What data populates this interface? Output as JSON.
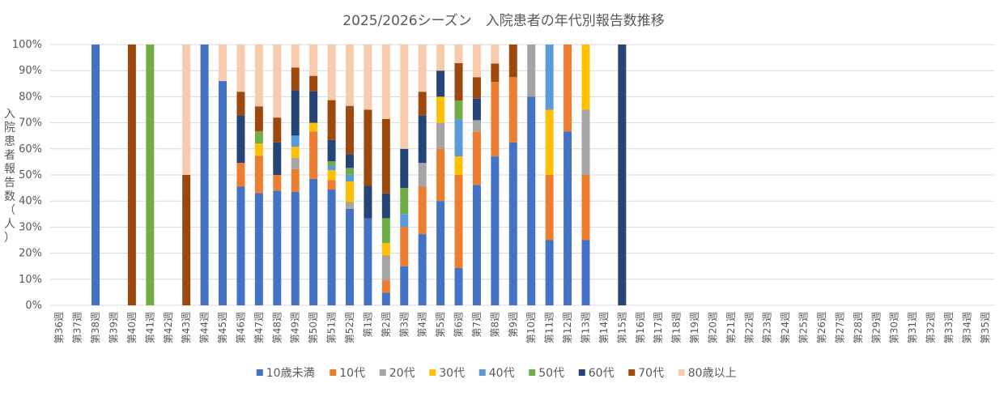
{
  "chart_data": {
    "type": "bar",
    "stacked": "percent",
    "title": "2025/2026シーズン　入院患者の年代別報告数推移",
    "ylabel": "入院患者報告数（人）",
    "xlabel": "",
    "ylim": [
      0,
      100
    ],
    "y_ticks": [
      "0%",
      "10%",
      "20%",
      "30%",
      "40%",
      "50%",
      "60%",
      "70%",
      "80%",
      "90%",
      "100%"
    ],
    "grid": true,
    "legend_position": "bottom",
    "categories": [
      "第36週",
      "第37週",
      "第38週",
      "第39週",
      "第40週",
      "第41週",
      "第42週",
      "第43週",
      "第44週",
      "第45週",
      "第46週",
      "第47週",
      "第48週",
      "第49週",
      "第50週",
      "第51週",
      "第52週",
      "第1週",
      "第2週",
      "第3週",
      "第4週",
      "第5週",
      "第6週",
      "第7週",
      "第8週",
      "第9週",
      "第10週",
      "第11週",
      "第12週",
      "第13週",
      "第14週",
      "第15週",
      "第16週",
      "第17週",
      "第18週",
      "第19週",
      "第20週",
      "第21週",
      "第22週",
      "第23週",
      "第24週",
      "第25週",
      "第26週",
      "第27週",
      "第28週",
      "第29週",
      "第30週",
      "第31週",
      "第32週",
      "第33週",
      "第34週",
      "第35週"
    ],
    "series": [
      {
        "name": "10歳未満",
        "color": "#4472C4",
        "values": [
          0,
          0,
          100,
          0,
          0,
          0,
          0,
          0,
          100,
          86,
          45.5,
          43,
          44,
          43.5,
          48.5,
          44.4,
          37,
          33.3,
          4.8,
          15,
          27.3,
          40,
          14.3,
          46.2,
          57.1,
          62.5,
          80,
          25,
          66.7,
          25,
          0,
          0,
          0,
          0,
          0,
          0,
          0,
          0,
          0,
          0,
          0,
          0,
          0,
          0,
          0,
          0,
          0,
          0,
          0,
          0,
          0,
          0
        ]
      },
      {
        "name": "10代",
        "color": "#ED7D31",
        "values": [
          0,
          0,
          0,
          0,
          0,
          0,
          0,
          0,
          0,
          0,
          9.1,
          14.3,
          6,
          8.7,
          18.2,
          3.7,
          0,
          0,
          4.8,
          15,
          18.2,
          20,
          35.7,
          20.5,
          28.6,
          25,
          0,
          25,
          33.3,
          25,
          0,
          0,
          0,
          0,
          0,
          0,
          0,
          0,
          0,
          0,
          0,
          0,
          0,
          0,
          0,
          0,
          0,
          0,
          0,
          0,
          0,
          0
        ]
      },
      {
        "name": "20代",
        "color": "#A5A5A5",
        "values": [
          0,
          0,
          0,
          0,
          0,
          0,
          0,
          0,
          0,
          0,
          0,
          0,
          0,
          4.3,
          0,
          0,
          2.6,
          0,
          9.5,
          0,
          9.1,
          10,
          0,
          4.3,
          0,
          0,
          20,
          0,
          0,
          25,
          0,
          0,
          0,
          0,
          0,
          0,
          0,
          0,
          0,
          0,
          0,
          0,
          0,
          0,
          0,
          0,
          0,
          0,
          0,
          0,
          0,
          0
        ]
      },
      {
        "name": "30代",
        "color": "#FFC000",
        "values": [
          0,
          0,
          0,
          0,
          0,
          0,
          0,
          0,
          0,
          0,
          0,
          4.7,
          0,
          4.3,
          3.3,
          3.7,
          7.9,
          0,
          4.8,
          0,
          0,
          10,
          7.1,
          0,
          0,
          0,
          0,
          25,
          0,
          25,
          0,
          0,
          0,
          0,
          0,
          0,
          0,
          0,
          0,
          0,
          0,
          0,
          0,
          0,
          0,
          0,
          0,
          0,
          0,
          0,
          0,
          0
        ]
      },
      {
        "name": "40代",
        "color": "#5B9BD5",
        "values": [
          0,
          0,
          0,
          0,
          0,
          0,
          0,
          0,
          0,
          0,
          0,
          0,
          0,
          4.3,
          0,
          1.8,
          2.6,
          0,
          0,
          5,
          0,
          0,
          14.3,
          0,
          0,
          0,
          0,
          25,
          0,
          0,
          0,
          0,
          0,
          0,
          0,
          0,
          0,
          0,
          0,
          0,
          0,
          0,
          0,
          0,
          0,
          0,
          0,
          0,
          0,
          0,
          0,
          0
        ]
      },
      {
        "name": "50代",
        "color": "#70AD47",
        "values": [
          0,
          0,
          0,
          0,
          0,
          100,
          0,
          0,
          0,
          0,
          0,
          4.7,
          0,
          0,
          0,
          1.6,
          2.6,
          0,
          9.5,
          10,
          0,
          0,
          7.1,
          0,
          0,
          0,
          0,
          0,
          0,
          0,
          0,
          0,
          0,
          0,
          0,
          0,
          0,
          0,
          0,
          0,
          0,
          0,
          0,
          0,
          0,
          0,
          0,
          0,
          0,
          0,
          0,
          0
        ]
      },
      {
        "name": "60代",
        "color": "#264478",
        "values": [
          0,
          0,
          0,
          0,
          0,
          0,
          0,
          0,
          0,
          0,
          18.2,
          0,
          12.5,
          17.4,
          12.1,
          8.2,
          5.3,
          12.5,
          9.5,
          15,
          18.2,
          10,
          0,
          8.3,
          0,
          0,
          0,
          0,
          0,
          0,
          0,
          100,
          0,
          0,
          0,
          0,
          0,
          0,
          0,
          0,
          0,
          0,
          0,
          0,
          0,
          0,
          0,
          0,
          0,
          0,
          0,
          0
        ]
      },
      {
        "name": "70代",
        "color": "#9E480E",
        "values": [
          0,
          0,
          0,
          0,
          100,
          0,
          0,
          50,
          0,
          0,
          9.1,
          9.6,
          9.5,
          8.7,
          5.9,
          15.3,
          18.5,
          29.2,
          28.6,
          0,
          9.1,
          0,
          14.4,
          8.2,
          7,
          12.5,
          0,
          0,
          0,
          0,
          0,
          0,
          0,
          0,
          0,
          0,
          0,
          0,
          0,
          0,
          0,
          0,
          0,
          0,
          0,
          0,
          0,
          0,
          0,
          0,
          0,
          0
        ]
      },
      {
        "name": "80歳以上",
        "color": "#F8CBAD",
        "values": [
          0,
          0,
          0,
          0,
          0,
          0,
          0,
          50,
          0,
          14,
          18.1,
          23.7,
          28,
          8.8,
          12,
          21.3,
          23.5,
          25,
          28.5,
          40,
          18.1,
          10,
          7.1,
          12.5,
          7.3,
          0,
          0,
          0,
          0,
          0,
          0,
          0,
          0,
          0,
          0,
          0,
          0,
          0,
          0,
          0,
          0,
          0,
          0,
          0,
          0,
          0,
          0,
          0,
          0,
          0,
          0,
          0
        ]
      }
    ]
  }
}
